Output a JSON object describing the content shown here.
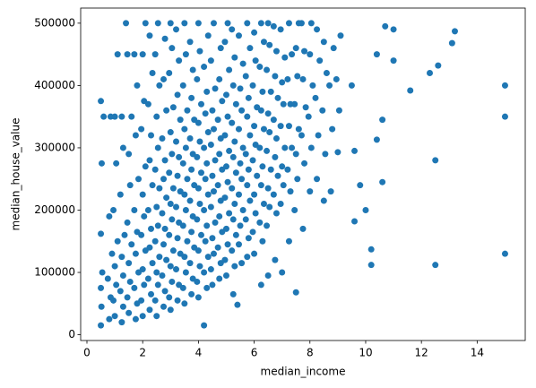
{
  "chart_data": {
    "type": "scatter",
    "x_label": "median_income",
    "y_label": "median_house_value",
    "color": "#1f77b4",
    "x": [
      0.5,
      0.52,
      0.5,
      0.55,
      0.5,
      0.53,
      0.6,
      0.5,
      0.8,
      0.85,
      0.75,
      0.9,
      0.8,
      0.85,
      1.0,
      0.95,
      1.05,
      1.0,
      1.1,
      0.95,
      1.05,
      1.0,
      1.1,
      1.25,
      1.3,
      1.2,
      1.3,
      1.25,
      1.35,
      1.2,
      1.3,
      1.25,
      1.5,
      1.45,
      1.55,
      1.5,
      1.6,
      1.45,
      1.55,
      1.5,
      1.6,
      1.45,
      1.4,
      1.75,
      1.8,
      1.7,
      1.85,
      1.75,
      1.8,
      1.7,
      1.85,
      1.75,
      1.8,
      1.7,
      2.0,
      1.95,
      2.05,
      2.0,
      2.1,
      1.95,
      2.05,
      2.0,
      2.1,
      1.95,
      2.05,
      2.0,
      2.1,
      2.25,
      2.3,
      2.2,
      2.35,
      2.25,
      2.3,
      2.2,
      2.35,
      2.25,
      2.3,
      2.2,
      2.35,
      2.25,
      2.5,
      2.45,
      2.55,
      2.5,
      2.6,
      2.45,
      2.55,
      2.5,
      2.6,
      2.45,
      2.55,
      2.5,
      2.6,
      2.45,
      2.55,
      2.75,
      2.8,
      2.7,
      2.85,
      2.75,
      2.8,
      2.7,
      2.85,
      2.75,
      2.8,
      2.7,
      2.85,
      2.75,
      2.8,
      3.0,
      2.95,
      3.05,
      3.0,
      3.1,
      2.95,
      3.05,
      3.0,
      3.1,
      2.95,
      3.05,
      3.0,
      3.1,
      2.95,
      3.05,
      3.0,
      3.25,
      3.3,
      3.2,
      3.35,
      3.25,
      3.3,
      3.2,
      3.35,
      3.25,
      3.3,
      3.2,
      3.35,
      3.25,
      3.3,
      3.2,
      3.5,
      3.45,
      3.55,
      3.5,
      3.6,
      3.45,
      3.55,
      3.5,
      3.6,
      3.45,
      3.55,
      3.5,
      3.6,
      3.45,
      3.55,
      3.5,
      3.75,
      3.8,
      3.7,
      3.85,
      3.75,
      3.8,
      3.7,
      3.85,
      3.75,
      3.8,
      3.7,
      3.85,
      3.75,
      3.8,
      3.7,
      4.0,
      3.95,
      4.05,
      4.0,
      4.1,
      3.95,
      4.05,
      4.0,
      4.1,
      3.95,
      4.05,
      4.0,
      4.1,
      3.95,
      4.05,
      4.0,
      4.2,
      4.3,
      4.2,
      4.35,
      4.25,
      4.3,
      4.2,
      4.35,
      4.25,
      4.3,
      4.2,
      4.35,
      4.25,
      4.3,
      4.2,
      4.35,
      4.5,
      4.45,
      4.55,
      4.5,
      4.6,
      4.45,
      4.55,
      4.5,
      4.6,
      4.45,
      4.55,
      4.5,
      4.6,
      4.45,
      4.55,
      4.75,
      4.8,
      4.7,
      4.85,
      4.75,
      4.8,
      4.7,
      4.85,
      4.75,
      4.8,
      4.7,
      4.85,
      4.75,
      4.8,
      5.0,
      4.95,
      5.05,
      5.0,
      5.1,
      4.95,
      5.05,
      5.0,
      5.1,
      4.95,
      5.05,
      5.0,
      5.1,
      4.95,
      5.05,
      5.25,
      5.3,
      5.2,
      5.35,
      5.25,
      5.3,
      5.2,
      5.35,
      5.25,
      5.3,
      5.2,
      5.35,
      5.25,
      5.3,
      5.2,
      5.4,
      5.55,
      5.45,
      5.5,
      5.6,
      5.45,
      5.55,
      5.5,
      5.6,
      5.45,
      5.55,
      5.5,
      5.6,
      5.45,
      5.75,
      5.8,
      5.7,
      5.85,
      5.75,
      5.8,
      5.7,
      5.85,
      5.75,
      5.8,
      5.7,
      5.85,
      5.75,
      6.0,
      5.95,
      6.05,
      6.0,
      6.1,
      5.95,
      6.05,
      6.0,
      6.1,
      5.95,
      6.05,
      6.0,
      6.25,
      6.3,
      6.2,
      6.35,
      6.25,
      6.3,
      6.2,
      6.35,
      6.25,
      6.3,
      6.2,
      6.35,
      6.25,
      6.5,
      6.45,
      6.55,
      6.5,
      6.6,
      6.45,
      6.55,
      6.5,
      6.6,
      6.45,
      6.55,
      6.5,
      6.75,
      6.8,
      6.7,
      6.85,
      6.75,
      6.8,
      6.7,
      6.85,
      6.75,
      6.8,
      6.7,
      7.0,
      6.95,
      7.05,
      7.0,
      7.1,
      6.95,
      7.05,
      7.0,
      7.1,
      6.95,
      7.25,
      7.3,
      7.2,
      7.35,
      7.25,
      7.3,
      7.2,
      7.35,
      7.25,
      7.5,
      7.45,
      7.55,
      7.5,
      7.6,
      7.45,
      7.55,
      7.5,
      7.6,
      7.75,
      7.8,
      7.7,
      7.85,
      7.75,
      7.8,
      7.7,
      8.0,
      8.05,
      7.95,
      8.1,
      8.0,
      8.05,
      8.25,
      8.3,
      8.2,
      8.35,
      8.25,
      8.5,
      8.55,
      8.45,
      8.6,
      8.5,
      8.75,
      8.8,
      8.7,
      8.85,
      9.0,
      9.05,
      8.95,
      9.1,
      9.6,
      9.6,
      9.8,
      10.0,
      10.2,
      10.2,
      10.4,
      10.6,
      10.4,
      10.7,
      11.0,
      11.0,
      11.6,
      12.3,
      12.5,
      12.5,
      12.6,
      13.1,
      13.2,
      15.0,
      15.0,
      15.0,
      9.5,
      10.6
    ],
    "values": [
      15000,
      45000,
      75000,
      100000,
      162000,
      275000,
      350000,
      375000,
      25000,
      60000,
      90000,
      130000,
      190000,
      350000,
      30000,
      55000,
      80000,
      110000,
      150000,
      200000,
      275000,
      350000,
      450000,
      20000,
      45000,
      70000,
      95000,
      125000,
      160000,
      225000,
      300000,
      350000,
      35000,
      60000,
      85000,
      115000,
      145000,
      180000,
      240000,
      290000,
      350000,
      450000,
      500000,
      25000,
      50000,
      75000,
      100000,
      130000,
      165000,
      200000,
      250000,
      320000,
      400000,
      450000,
      30000,
      55000,
      80000,
      105000,
      135000,
      160000,
      190000,
      225000,
      270000,
      330000,
      375000,
      450000,
      500000,
      40000,
      65000,
      90000,
      115000,
      140000,
      170000,
      200000,
      240000,
      280000,
      320000,
      370000,
      420000,
      480000,
      30000,
      55000,
      80000,
      100000,
      125000,
      150000,
      175000,
      205000,
      235000,
      265000,
      300000,
      350000,
      400000,
      450000,
      500000,
      45000,
      70000,
      95000,
      120000,
      145000,
      170000,
      195000,
      220000,
      250000,
      280000,
      315000,
      360000,
      410000,
      475000,
      40000,
      60000,
      85000,
      110000,
      135000,
      160000,
      185000,
      210000,
      235000,
      260000,
      290000,
      325000,
      365000,
      420000,
      460000,
      500000,
      55000,
      80000,
      105000,
      130000,
      155000,
      180000,
      205000,
      230000,
      255000,
      285000,
      310000,
      345000,
      385000,
      440000,
      490000,
      50000,
      75000,
      100000,
      125000,
      150000,
      175000,
      200000,
      225000,
      250000,
      275000,
      300000,
      330000,
      360000,
      400000,
      450000,
      500000,
      65000,
      90000,
      115000,
      140000,
      165000,
      190000,
      215000,
      240000,
      265000,
      290000,
      315000,
      345000,
      380000,
      425000,
      470000,
      60000,
      85000,
      110000,
      135000,
      160000,
      185000,
      210000,
      235000,
      260000,
      285000,
      310000,
      340000,
      370000,
      410000,
      455000,
      500000,
      15000,
      75000,
      100000,
      125000,
      150000,
      175000,
      200000,
      225000,
      250000,
      275000,
      300000,
      325000,
      355000,
      390000,
      430000,
      480000,
      80000,
      105000,
      130000,
      155000,
      180000,
      205000,
      230000,
      255000,
      280000,
      305000,
      330000,
      360000,
      395000,
      440000,
      500000,
      90000,
      115000,
      140000,
      165000,
      190000,
      215000,
      240000,
      265000,
      290000,
      315000,
      345000,
      375000,
      410000,
      460000,
      95000,
      120000,
      145000,
      170000,
      195000,
      220000,
      245000,
      270000,
      295000,
      320000,
      350000,
      385000,
      425000,
      470000,
      500000,
      65000,
      110000,
      135000,
      160000,
      185000,
      210000,
      235000,
      260000,
      285000,
      310000,
      340000,
      370000,
      400000,
      445000,
      490000,
      48000,
      115000,
      145000,
      175000,
      200000,
      225000,
      250000,
      275000,
      300000,
      330000,
      360000,
      395000,
      435000,
      480000,
      125000,
      155000,
      185000,
      215000,
      240000,
      265000,
      290000,
      320000,
      350000,
      380000,
      415000,
      460000,
      500000,
      130000,
      165000,
      195000,
      225000,
      255000,
      280000,
      305000,
      335000,
      365000,
      400000,
      440000,
      485000,
      80000,
      150000,
      180000,
      210000,
      240000,
      270000,
      300000,
      330000,
      360000,
      390000,
      430000,
      470000,
      500000,
      95000,
      175000,
      205000,
      235000,
      265000,
      295000,
      325000,
      355000,
      390000,
      425000,
      465000,
      500000,
      120000,
      195000,
      225000,
      255000,
      285000,
      315000,
      345000,
      380000,
      415000,
      455000,
      495000,
      100000,
      210000,
      240000,
      270000,
      300000,
      335000,
      370000,
      405000,
      445000,
      490000,
      150000,
      230000,
      265000,
      300000,
      335000,
      370000,
      410000,
      450000,
      500000,
      68000,
      200000,
      250000,
      290000,
      330000,
      370000,
      415000,
      460000,
      500000,
      170000,
      275000,
      320000,
      365000,
      410000,
      455000,
      500000,
      230000,
      300000,
      350000,
      400000,
      450000,
      500000,
      250000,
      320000,
      380000,
      440000,
      490000,
      215000,
      290000,
      360000,
      420000,
      470000,
      230000,
      330000,
      400000,
      460000,
      293000,
      360000,
      410000,
      480000,
      182000,
      295000,
      240000,
      200000,
      112000,
      137000,
      313000,
      245000,
      450000,
      495000,
      440000,
      490000,
      392000,
      420000,
      280000,
      112000,
      432000,
      468000,
      487000,
      400000,
      350000,
      130000,
      400000,
      345000
    ],
    "xlim": [
      -0.225,
      15.725
    ],
    "ylim": [
      -9251,
      524251
    ],
    "xticks": [
      0,
      2,
      4,
      6,
      8,
      10,
      12,
      14
    ],
    "yticks": [
      0,
      100000,
      200000,
      300000,
      400000,
      500000
    ],
    "grid": false
  }
}
